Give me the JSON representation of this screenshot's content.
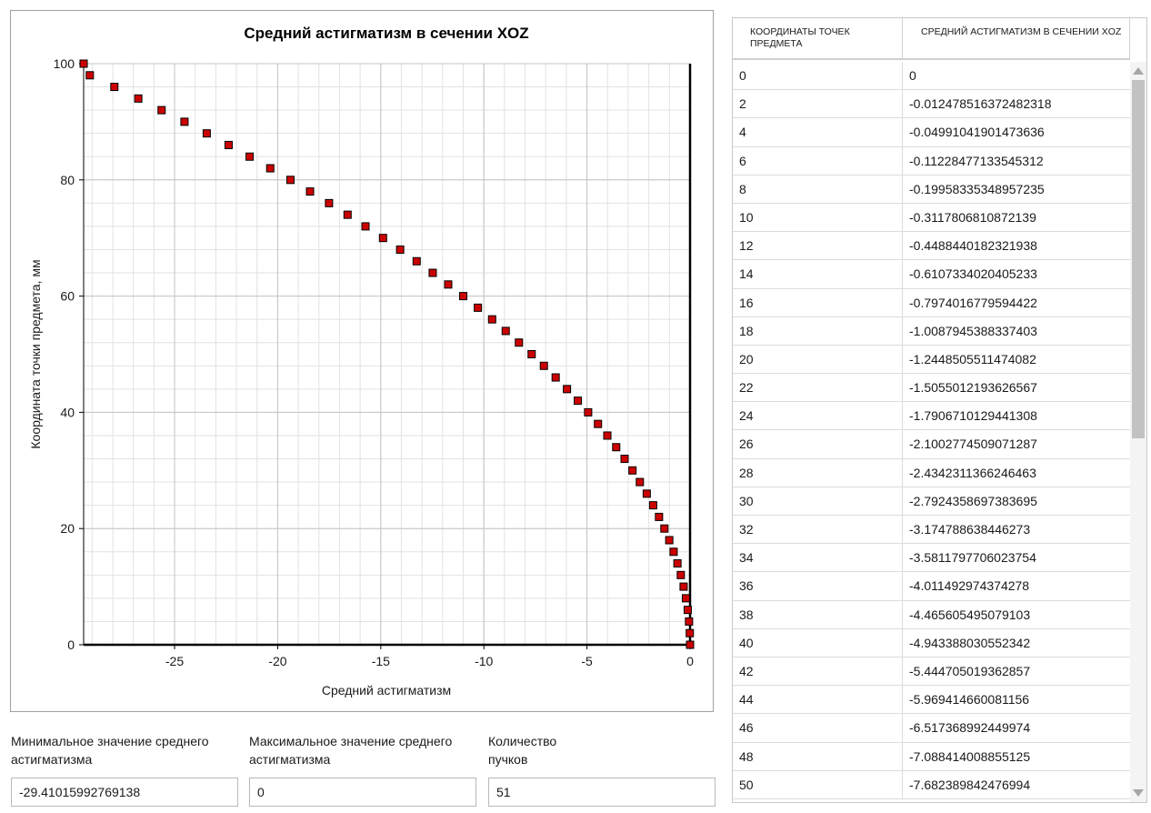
{
  "chart_data": {
    "type": "scatter",
    "title": "Средний астигматизм в сечении XOZ",
    "xlabel": "Средний астигматизм",
    "ylabel": "Координата точки предмета, мм",
    "xlim": [
      -29.41,
      0
    ],
    "ylim": [
      0,
      100
    ],
    "x_ticks": [
      -25,
      -20,
      -15,
      -10,
      -5,
      0
    ],
    "y_ticks": [
      0,
      20,
      40,
      60,
      80,
      100
    ],
    "grid": true,
    "marker_color": "#cc0000",
    "series": [
      {
        "name": "",
        "x": [
          0,
          -0.012478516372482318,
          -0.04991041901473636,
          -0.1122847713354531,
          -0.19958335348957235,
          -0.3117806810872139,
          -0.4488440182321938,
          -0.6107334020405233,
          -0.7974016779594422,
          -1.0087945388337403,
          -1.2448505511474082,
          -1.5055012193626567,
          -1.7906710129441308,
          -2.1002774509071287,
          -2.4342311366246463,
          -2.7924358697383695,
          -3.174788638446273,
          -3.5811797706023754,
          -4.011492974374278,
          -4.465605495079103,
          -4.943388030552342,
          -5.444705019362857,
          -5.969414660081156,
          -6.517368992449974,
          -7.088414008855125,
          -7.682389842476994,
          -8.3,
          -8.94,
          -9.6,
          -10.29,
          -11.0,
          -11.73,
          -12.48,
          -13.26,
          -14.06,
          -14.89,
          -15.74,
          -16.61,
          -17.51,
          -18.43,
          -19.38,
          -20.36,
          -21.36,
          -22.38,
          -23.44,
          -24.52,
          -25.63,
          -26.76,
          -27.92,
          -29.11,
          -29.41015992769138
        ],
        "y": [
          0,
          2,
          4,
          6,
          8,
          10,
          12,
          14,
          16,
          18,
          20,
          22,
          24,
          26,
          28,
          30,
          32,
          34,
          36,
          38,
          40,
          42,
          44,
          46,
          48,
          50,
          52,
          54,
          56,
          58,
          60,
          62,
          64,
          66,
          68,
          70,
          72,
          74,
          76,
          78,
          80,
          82,
          84,
          86,
          88,
          90,
          92,
          94,
          96,
          98,
          100
        ]
      }
    ]
  },
  "fields": {
    "min_label": "Минимальное значение среднего\nастигматизма",
    "min_value": "-29.41015992769138",
    "max_label": "Максимальное значение среднего\nастигматизма",
    "max_value": "0",
    "count_label": "Количество\nпучков",
    "count_value": "51"
  },
  "table": {
    "headers": [
      "КООРДИНАТЫ ТОЧЕК ПРЕДМЕТА",
      "СРЕДНИЙ АСТИГМАТИЗМ В СЕЧЕНИИ XOZ"
    ],
    "rows": [
      [
        "0",
        "0"
      ],
      [
        "2",
        "-0.012478516372482318"
      ],
      [
        "4",
        "-0.04991041901473636"
      ],
      [
        "6",
        "-0.1122847713354531​2"
      ],
      [
        "8",
        "-0.19958335348957235"
      ],
      [
        "10",
        "-0.3117806810872139"
      ],
      [
        "12",
        "-0.4488440182321938"
      ],
      [
        "14",
        "-0.6107334020405233"
      ],
      [
        "16",
        "-0.7974016779594422"
      ],
      [
        "18",
        "-1.0087945388337403"
      ],
      [
        "20",
        "-1.2448505511474082"
      ],
      [
        "22",
        "-1.5055012193626567"
      ],
      [
        "24",
        "-1.7906710129441308"
      ],
      [
        "26",
        "-2.1002774509071287"
      ],
      [
        "28",
        "-2.4342311366246463"
      ],
      [
        "30",
        "-2.7924358697383695"
      ],
      [
        "32",
        "-3.174788638446273"
      ],
      [
        "34",
        "-3.5811797706023754"
      ],
      [
        "36",
        "-4.011492974374278"
      ],
      [
        "38",
        "-4.465605495079103"
      ],
      [
        "40",
        "-4.943388030552342"
      ],
      [
        "42",
        "-5.444705019362857"
      ],
      [
        "44",
        "-5.969414660081156"
      ],
      [
        "46",
        "-6.517368992449974"
      ],
      [
        "48",
        "-7.088414008855125"
      ],
      [
        "50",
        "-7.682389842476994"
      ]
    ]
  }
}
